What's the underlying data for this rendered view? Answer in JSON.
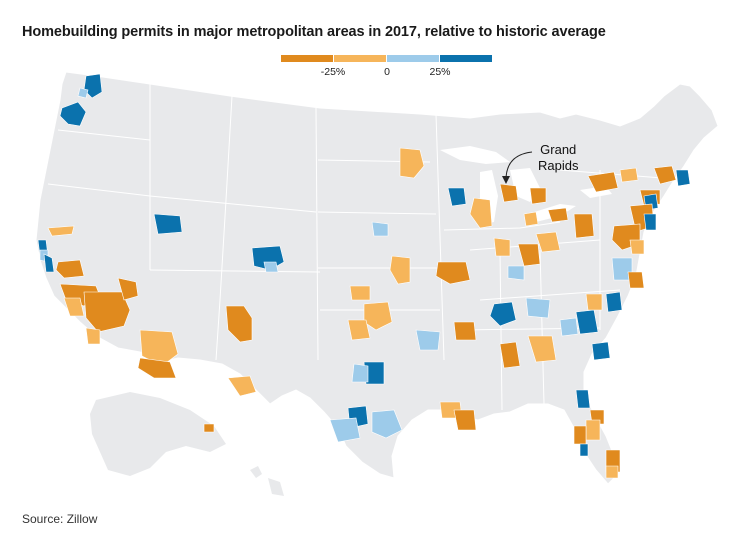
{
  "title": "Homebuilding permits in major metropolitan areas in 2017, relative to historic average",
  "legend": {
    "colors": {
      "strong_below": "#e08a1e",
      "below": "#f6b55a",
      "above": "#9dcbea",
      "strong_above": "#0b72ad"
    },
    "labels": [
      "-25%",
      "0",
      "25%"
    ]
  },
  "map_base": {
    "land_color": "#e8e9eb",
    "border_color": "#ffffff"
  },
  "annotation": {
    "line1": "Grand",
    "line2": "Rapids"
  },
  "source": "Source: Zillow",
  "categories_legend": [
    "strong_below",
    "below",
    "above",
    "strong_above"
  ]
}
